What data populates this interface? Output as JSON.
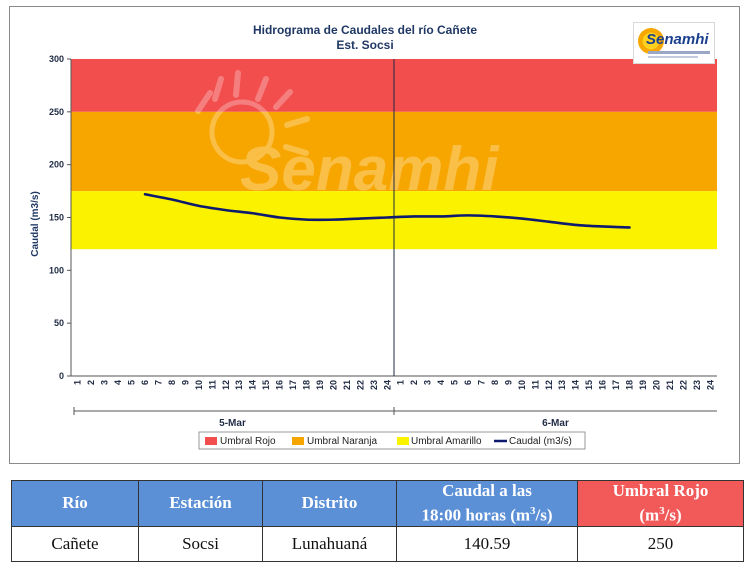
{
  "chart_data": {
    "type": "line",
    "title": "Hidrograma de Caudales  del río Cañete",
    "subtitle": "Est. Socsi",
    "ylabel": "Caudal  (m3/s)",
    "ylim": [
      0,
      300
    ],
    "yticks": [
      0,
      50,
      100,
      150,
      200,
      250,
      300
    ],
    "hours_per_day": [
      "1",
      "2",
      "3",
      "4",
      "5",
      "6",
      "7",
      "8",
      "9",
      "10",
      "11",
      "12",
      "13",
      "14",
      "15",
      "16",
      "17",
      "18",
      "19",
      "20",
      "21",
      "22",
      "23",
      "24"
    ],
    "days": [
      "5-Mar",
      "6-Mar"
    ],
    "bands": [
      {
        "name": "Umbral Rojo",
        "from": 250,
        "to": 300,
        "color": "#f24e4e"
      },
      {
        "name": "Umbral Naranja",
        "from": 175,
        "to": 250,
        "color": "#f7a600"
      },
      {
        "name": "Umbral Amarillo",
        "from": 120,
        "to": 175,
        "color": "#fbf200"
      }
    ],
    "series": [
      {
        "name": "Caudal (m3/s)",
        "color": "#0d1a6e",
        "points": [
          {
            "day": "5-Mar",
            "hour": 6,
            "value": 172
          },
          {
            "day": "5-Mar",
            "hour": 8,
            "value": 167
          },
          {
            "day": "5-Mar",
            "hour": 10,
            "value": 161
          },
          {
            "day": "5-Mar",
            "hour": 12,
            "value": 157
          },
          {
            "day": "5-Mar",
            "hour": 14,
            "value": 154
          },
          {
            "day": "5-Mar",
            "hour": 16,
            "value": 150
          },
          {
            "day": "5-Mar",
            "hour": 18,
            "value": 148
          },
          {
            "day": "5-Mar",
            "hour": 20,
            "value": 148
          },
          {
            "day": "5-Mar",
            "hour": 22,
            "value": 149
          },
          {
            "day": "5-Mar",
            "hour": 24,
            "value": 150
          },
          {
            "day": "6-Mar",
            "hour": 2,
            "value": 151
          },
          {
            "day": "6-Mar",
            "hour": 4,
            "value": 151
          },
          {
            "day": "6-Mar",
            "hour": 6,
            "value": 152
          },
          {
            "day": "6-Mar",
            "hour": 8,
            "value": 151
          },
          {
            "day": "6-Mar",
            "hour": 10,
            "value": 149
          },
          {
            "day": "6-Mar",
            "hour": 12,
            "value": 146
          },
          {
            "day": "6-Mar",
            "hour": 14,
            "value": 143
          },
          {
            "day": "6-Mar",
            "hour": 16,
            "value": 141.5
          },
          {
            "day": "6-Mar",
            "hour": 18,
            "value": 140.59
          }
        ]
      }
    ],
    "legend": [
      "Umbral Rojo",
      "Umbral Naranja",
      "Umbral Amarillo",
      "Caudal (m3/s)"
    ],
    "legend_position": "bottom",
    "grid": false,
    "watermark": "Senamhi"
  },
  "logo": {
    "name": "Senamhi"
  },
  "table": {
    "headers": {
      "rio": "Río",
      "estacion": "Estación",
      "distrito": "Distrito",
      "caudal_line1": "Caudal a las",
      "caudal_line2": "18:00 horas (m",
      "caudal_sup": "3",
      "caudal_tail": "/s)",
      "umbral_line1": "Umbral Rojo",
      "umbral_line2": "(m",
      "umbral_sup": "3",
      "umbral_tail": "/s)"
    },
    "row": {
      "rio": "Cañete",
      "estacion": "Socsi",
      "distrito": "Lunahuaná",
      "caudal": "140.59",
      "umbral": "250"
    }
  }
}
